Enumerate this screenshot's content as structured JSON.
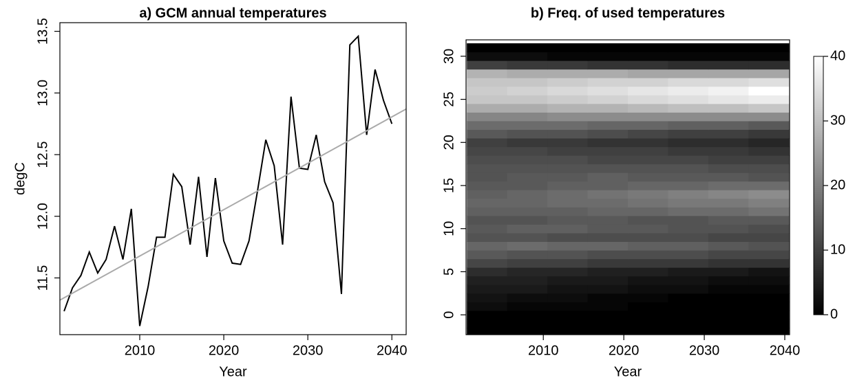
{
  "chart_data": [
    {
      "type": "line",
      "title": "a) GCM annual temperatures",
      "xlabel": "Year",
      "ylabel": "degC",
      "x": [
        2001,
        2002,
        2003,
        2004,
        2005,
        2006,
        2007,
        2008,
        2009,
        2010,
        2011,
        2012,
        2013,
        2014,
        2015,
        2016,
        2017,
        2018,
        2019,
        2020,
        2021,
        2022,
        2023,
        2024,
        2025,
        2026,
        2027,
        2028,
        2029,
        2030,
        2031,
        2032,
        2033,
        2034,
        2035,
        2036,
        2037,
        2038,
        2039,
        2040
      ],
      "series": [
        {
          "color": "#000000",
          "values": [
            11.23,
            11.42,
            11.52,
            11.71,
            11.54,
            11.65,
            11.92,
            11.65,
            12.06,
            11.11,
            11.43,
            11.83,
            11.83,
            12.34,
            12.24,
            11.77,
            12.32,
            11.67,
            12.31,
            11.8,
            11.62,
            11.61,
            11.8,
            12.2,
            12.62,
            12.41,
            11.77,
            12.97,
            12.39,
            12.38,
            12.66,
            12.28,
            12.11,
            11.37,
            13.39,
            13.46,
            12.66,
            13.19,
            12.94,
            12.75
          ]
        },
        {
          "color": "#aaaaaa",
          "x": [
            2000.5,
            2041.7
          ],
          "values": [
            11.32,
            12.87
          ]
        }
      ],
      "xlim": [
        2000.5,
        2041.7
      ],
      "ylim": [
        11.04,
        13.57
      ],
      "xticks": [
        2010,
        2020,
        2030,
        2040
      ],
      "yticks": [
        11.5,
        {
          "value": 12,
          "label": "12.0"
        },
        12.5,
        {
          "value": 13,
          "label": "13.0"
        },
        13.5
      ]
    },
    {
      "type": "heatmap",
      "title": "b) Freq. of used temperatures",
      "xlabel": "Year",
      "x_edges": [
        2000.5,
        2005.5,
        2010.5,
        2015.5,
        2020.5,
        2025.5,
        2030.5,
        2035.5,
        2040.5
      ],
      "y_edges": [
        -2.5,
        -1.5,
        -0.5,
        0.5,
        1.5,
        2.5,
        3.5,
        4.5,
        5.5,
        6.5,
        7.5,
        8.5,
        9.5,
        10.5,
        11.5,
        12.5,
        13.5,
        14.5,
        15.5,
        16.5,
        17.5,
        18.5,
        19.5,
        20.5,
        21.5,
        22.5,
        23.5,
        24.5,
        25.5,
        26.5,
        27.5,
        28.5,
        29.5,
        30.5,
        31.5
      ],
      "z": [
        [
          0,
          0,
          0,
          0,
          0,
          0,
          0,
          0
        ],
        [
          0,
          0,
          0,
          0,
          0,
          0,
          0,
          0
        ],
        [
          0,
          0,
          0,
          0,
          0,
          0,
          0,
          0
        ],
        [
          2,
          1,
          1,
          1,
          0,
          0,
          0,
          0
        ],
        [
          3,
          2,
          2,
          1,
          1,
          0,
          0,
          0
        ],
        [
          4,
          4,
          3,
          3,
          2,
          2,
          1,
          1
        ],
        [
          5,
          5,
          4,
          4,
          3,
          3,
          2,
          2
        ],
        [
          7,
          6,
          6,
          5,
          5,
          4,
          4,
          3
        ],
        [
          11,
          10,
          10,
          9,
          9,
          9,
          8,
          8
        ],
        [
          14,
          13,
          13,
          12,
          12,
          12,
          11,
          11
        ],
        [
          16,
          17,
          16,
          16,
          15,
          15,
          14,
          13
        ],
        [
          13,
          13,
          12,
          12,
          12,
          12,
          11,
          11
        ],
        [
          14,
          15,
          15,
          14,
          14,
          13,
          13,
          12
        ],
        [
          13,
          13,
          14,
          14,
          13,
          13,
          14,
          14
        ],
        [
          15,
          15,
          15,
          16,
          16,
          17,
          17,
          18
        ],
        [
          16,
          16,
          17,
          17,
          18,
          19,
          19,
          20
        ],
        [
          15,
          16,
          17,
          18,
          19,
          20,
          21,
          22
        ],
        [
          14,
          14,
          15,
          15,
          16,
          16,
          17,
          17
        ],
        [
          13,
          14,
          14,
          15,
          14,
          14,
          14,
          13
        ],
        [
          13,
          13,
          13,
          13,
          13,
          13,
          12,
          12
        ],
        [
          12,
          12,
          12,
          11,
          11,
          11,
          10,
          10
        ],
        [
          11,
          11,
          10,
          10,
          10,
          9,
          9,
          8
        ],
        [
          10,
          9,
          9,
          8,
          8,
          7,
          7,
          6
        ],
        [
          14,
          13,
          13,
          12,
          11,
          10,
          10,
          9
        ],
        [
          17,
          17,
          17,
          16,
          16,
          15,
          15,
          14
        ],
        [
          21,
          21,
          22,
          22,
          22,
          22,
          22,
          22
        ],
        [
          27,
          27,
          28,
          28,
          29,
          30,
          30,
          31
        ],
        [
          31,
          31,
          32,
          33,
          34,
          35,
          36,
          37
        ],
        [
          32,
          33,
          34,
          35,
          36,
          37,
          38,
          40
        ],
        [
          31,
          31,
          32,
          33,
          33,
          34,
          34,
          35
        ],
        [
          28,
          27,
          27,
          27,
          26,
          26,
          26,
          26
        ],
        [
          10,
          9,
          9,
          8,
          8,
          7,
          7,
          7
        ],
        [
          2,
          2,
          1,
          1,
          1,
          1,
          1,
          1
        ],
        [
          0,
          0,
          0,
          0,
          0,
          0,
          0,
          0
        ]
      ],
      "xlim": [
        2000.4,
        2040.6
      ],
      "ylim": [
        -2.3,
        31.9
      ],
      "xticks": [
        2010,
        2020,
        2030,
        2040
      ],
      "yticks": [
        0,
        5,
        10,
        15,
        20,
        25,
        30
      ],
      "zlim": [
        0,
        40
      ],
      "colorbar_ticks": [
        0,
        10,
        20,
        30,
        40
      ]
    }
  ]
}
